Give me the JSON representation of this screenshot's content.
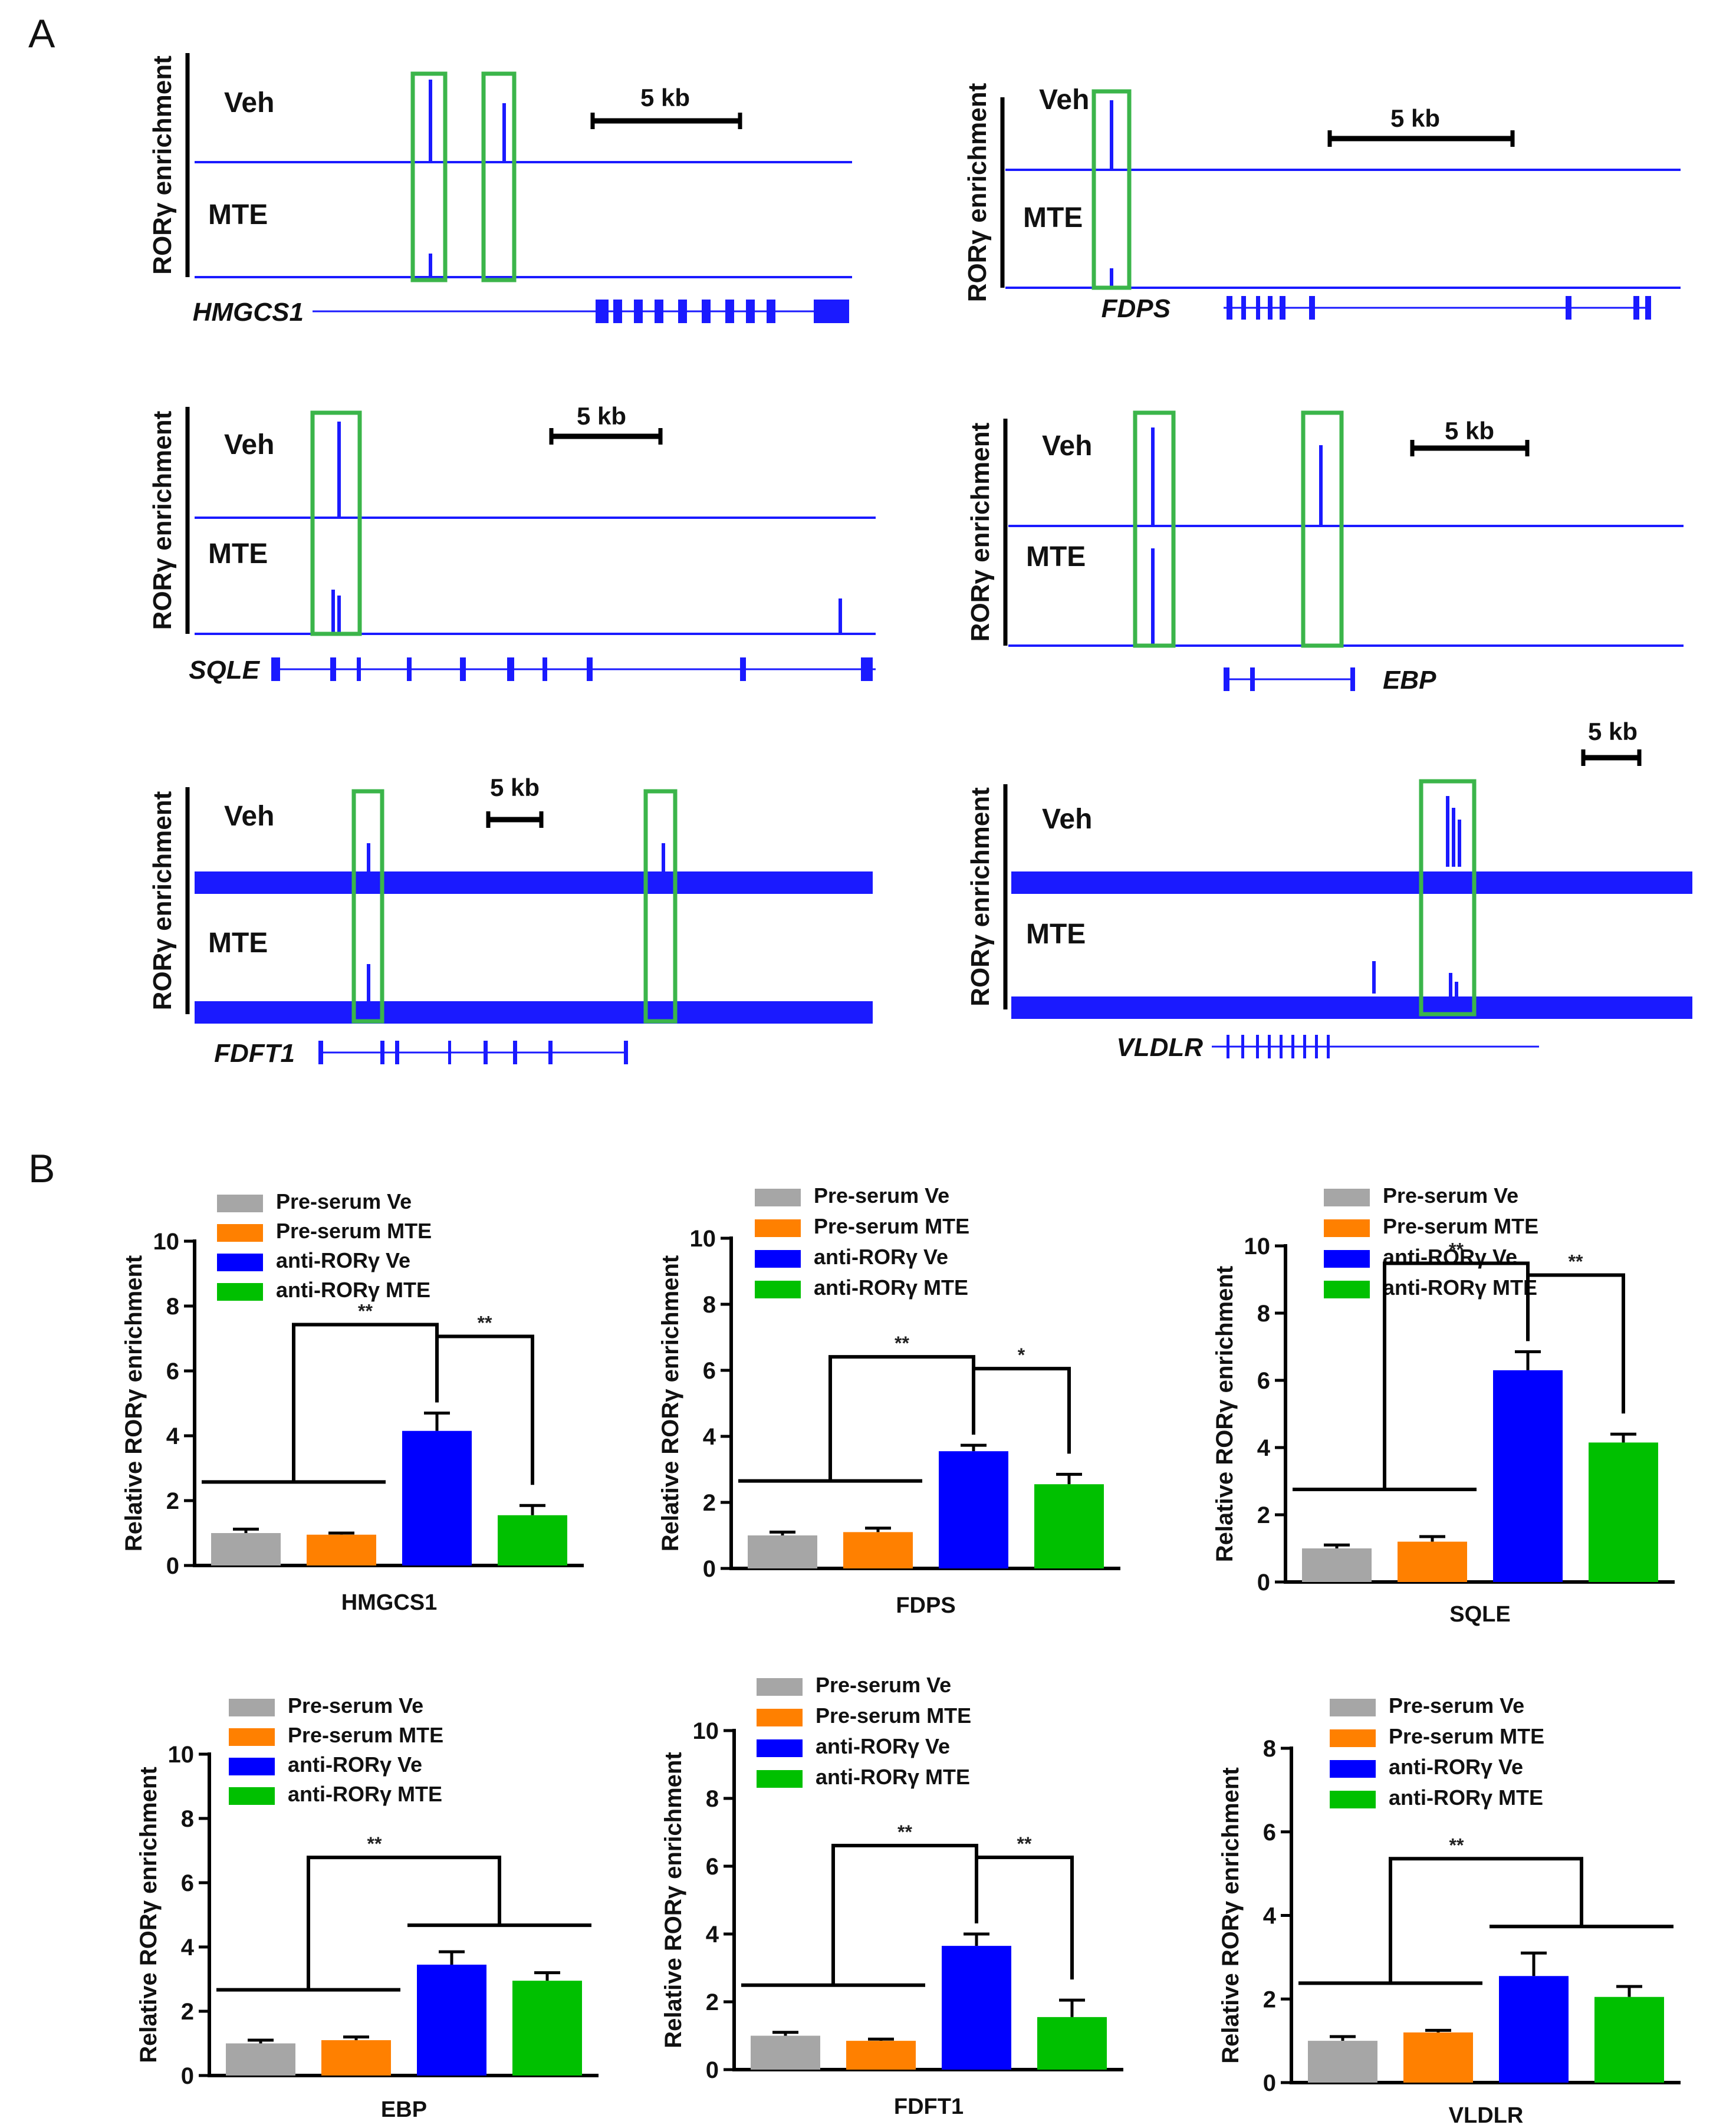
{
  "figure": {
    "panel_a_label": "A",
    "panel_b_label": "B"
  },
  "colors": {
    "track": "#1a1aff",
    "box": "#3bb54a",
    "bar_gray": "#a6a6a6",
    "bar_orange": "#ff8000",
    "bar_blue": "#0000ff",
    "bar_green": "#00c000",
    "axis": "#000000"
  },
  "tracks": {
    "ylabel": "RORγ enrichment",
    "veh_label": "Veh",
    "mte_label": "MTE",
    "scale_label": "5 kb",
    "loci": [
      {
        "gene": "HMGCS1",
        "fill": "line",
        "boxes": 2
      },
      {
        "gene": "FDPS",
        "fill": "line",
        "boxes": 1
      },
      {
        "gene": "SQLE",
        "fill": "line",
        "boxes": 1
      },
      {
        "gene": "EBP",
        "fill": "line",
        "boxes": 2
      },
      {
        "gene": "FDFT1",
        "fill": "thick",
        "boxes": 2
      },
      {
        "gene": "VLDLR",
        "fill": "thick",
        "boxes": 1
      }
    ]
  },
  "chart_data": [
    {
      "type": "bar",
      "title": "",
      "xlabel": "HMGCS1",
      "ylabel": "Relative RORγ enrichment",
      "ylim": [
        0,
        10
      ],
      "yticks": [
        0,
        2,
        4,
        6,
        8,
        10
      ],
      "categories": [
        "Pre-serum Ve",
        "Pre-serum MTE",
        "anti-RORγ Ve",
        "anti-RORγ MTE"
      ],
      "values": [
        1.0,
        0.95,
        4.15,
        1.55
      ],
      "errors": [
        0.12,
        0.05,
        0.55,
        0.3
      ],
      "sig": [
        "**",
        "**"
      ]
    },
    {
      "type": "bar",
      "title": "",
      "xlabel": "FDPS",
      "ylabel": "Relative RORγ enrichment",
      "ylim": [
        0,
        10
      ],
      "yticks": [
        0,
        2,
        4,
        6,
        8,
        10
      ],
      "categories": [
        "Pre-serum Ve",
        "Pre-serum MTE",
        "anti-RORγ Ve",
        "anti-RORγ MTE"
      ],
      "values": [
        1.0,
        1.1,
        3.55,
        2.55
      ],
      "errors": [
        0.1,
        0.12,
        0.18,
        0.3
      ],
      "sig": [
        "**",
        "*"
      ]
    },
    {
      "type": "bar",
      "title": "",
      "xlabel": "SQLE",
      "ylabel": "Relative RORγ enrichment",
      "ylim": [
        0,
        10
      ],
      "yticks": [
        0,
        2,
        4,
        6,
        8,
        10
      ],
      "categories": [
        "Pre-serum Ve",
        "Pre-serum MTE",
        "anti-RORγ Ve",
        "anti-RORγ MTE"
      ],
      "values": [
        1.0,
        1.2,
        6.3,
        4.15
      ],
      "errors": [
        0.1,
        0.15,
        0.55,
        0.25
      ],
      "sig": [
        "**",
        "**"
      ]
    },
    {
      "type": "bar",
      "title": "",
      "xlabel": "EBP",
      "ylabel": "Relative RORγ enrichment",
      "ylim": [
        0,
        10
      ],
      "yticks": [
        0,
        2,
        4,
        6,
        8,
        10
      ],
      "categories": [
        "Pre-serum Ve",
        "Pre-serum MTE",
        "anti-RORγ Ve",
        "anti-RORγ MTE"
      ],
      "values": [
        1.0,
        1.1,
        3.45,
        2.95
      ],
      "errors": [
        0.1,
        0.1,
        0.4,
        0.25
      ],
      "sig": [
        "**"
      ]
    },
    {
      "type": "bar",
      "title": "",
      "xlabel": "FDFT1",
      "ylabel": "Relative RORγ enrichment",
      "ylim": [
        0,
        10
      ],
      "yticks": [
        0,
        2,
        4,
        6,
        8,
        10
      ],
      "categories": [
        "Pre-serum Ve",
        "Pre-serum MTE",
        "anti-RORγ Ve",
        "anti-RORγ MTE"
      ],
      "values": [
        1.0,
        0.85,
        3.65,
        1.55
      ],
      "errors": [
        0.1,
        0.05,
        0.35,
        0.5
      ],
      "sig": [
        "**",
        "**"
      ]
    },
    {
      "type": "bar",
      "title": "",
      "xlabel": "VLDLR",
      "ylabel": "Relative RORγ enrichment",
      "ylim": [
        0,
        8
      ],
      "yticks": [
        0,
        2,
        4,
        6,
        8
      ],
      "categories": [
        "Pre-serum Ve",
        "Pre-serum MTE",
        "anti-RORγ Ve",
        "anti-RORγ MTE"
      ],
      "values": [
        1.0,
        1.2,
        2.55,
        2.05
      ],
      "errors": [
        0.1,
        0.05,
        0.55,
        0.25
      ],
      "sig": [
        "**"
      ]
    }
  ]
}
